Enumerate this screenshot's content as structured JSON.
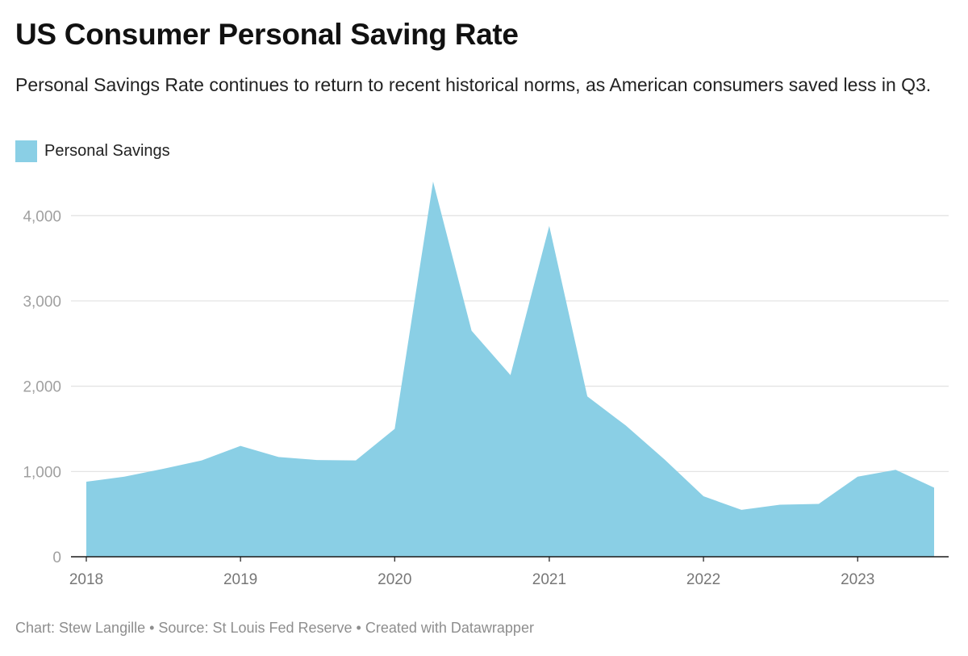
{
  "header": {
    "title": "US Consumer Personal Saving Rate",
    "subtitle": "Personal Savings Rate continues to return to recent historical norms, as American consumers saved less in Q3."
  },
  "footer": {
    "chart": "Chart: Stew Langille",
    "source": "Source: St Louis Fed Reserve",
    "credit": "Created with Datawrapper",
    "separator": "•"
  },
  "colors": {
    "area": "#8acfe5",
    "grid": "#e1e1e1",
    "baseline": "#1a1a1a"
  },
  "chart_data": {
    "type": "area",
    "title": "US Consumer Personal Saving Rate",
    "legend_position": "top-left",
    "grid": true,
    "x": [
      "2018-01-01",
      "2018-04-01",
      "2018-07-01",
      "2018-10-01",
      "2019-01-01",
      "2019-04-01",
      "2019-07-01",
      "2019-10-01",
      "2020-01-01",
      "2020-04-01",
      "2020-07-01",
      "2020-10-01",
      "2021-01-01",
      "2021-04-01",
      "2021-07-01",
      "2021-10-01",
      "2022-01-01",
      "2022-04-01",
      "2022-07-01",
      "2022-10-01",
      "2023-01-01",
      "2023-04-01",
      "2023-07-01"
    ],
    "xlim": [
      "2018-01-01",
      "2023-07-01"
    ],
    "x_ticks": [
      "2018",
      "2019",
      "2020",
      "2021",
      "2022",
      "2023"
    ],
    "ylim": [
      0,
      4400
    ],
    "y_ticks": [
      {
        "value": 0,
        "label": "0"
      },
      {
        "value": 1000,
        "label": "1,000"
      },
      {
        "value": 2000,
        "label": "2,000"
      },
      {
        "value": 3000,
        "label": "3,000"
      },
      {
        "value": 4000,
        "label": "4,000"
      }
    ],
    "series": [
      {
        "name": "Personal Savings",
        "values": [
          880,
          940,
          1030,
          1130,
          1300,
          1170,
          1135,
          1130,
          1500,
          4400,
          2650,
          2130,
          3880,
          1880,
          1540,
          1140,
          710,
          550,
          610,
          620,
          940,
          1020,
          810
        ]
      }
    ]
  }
}
